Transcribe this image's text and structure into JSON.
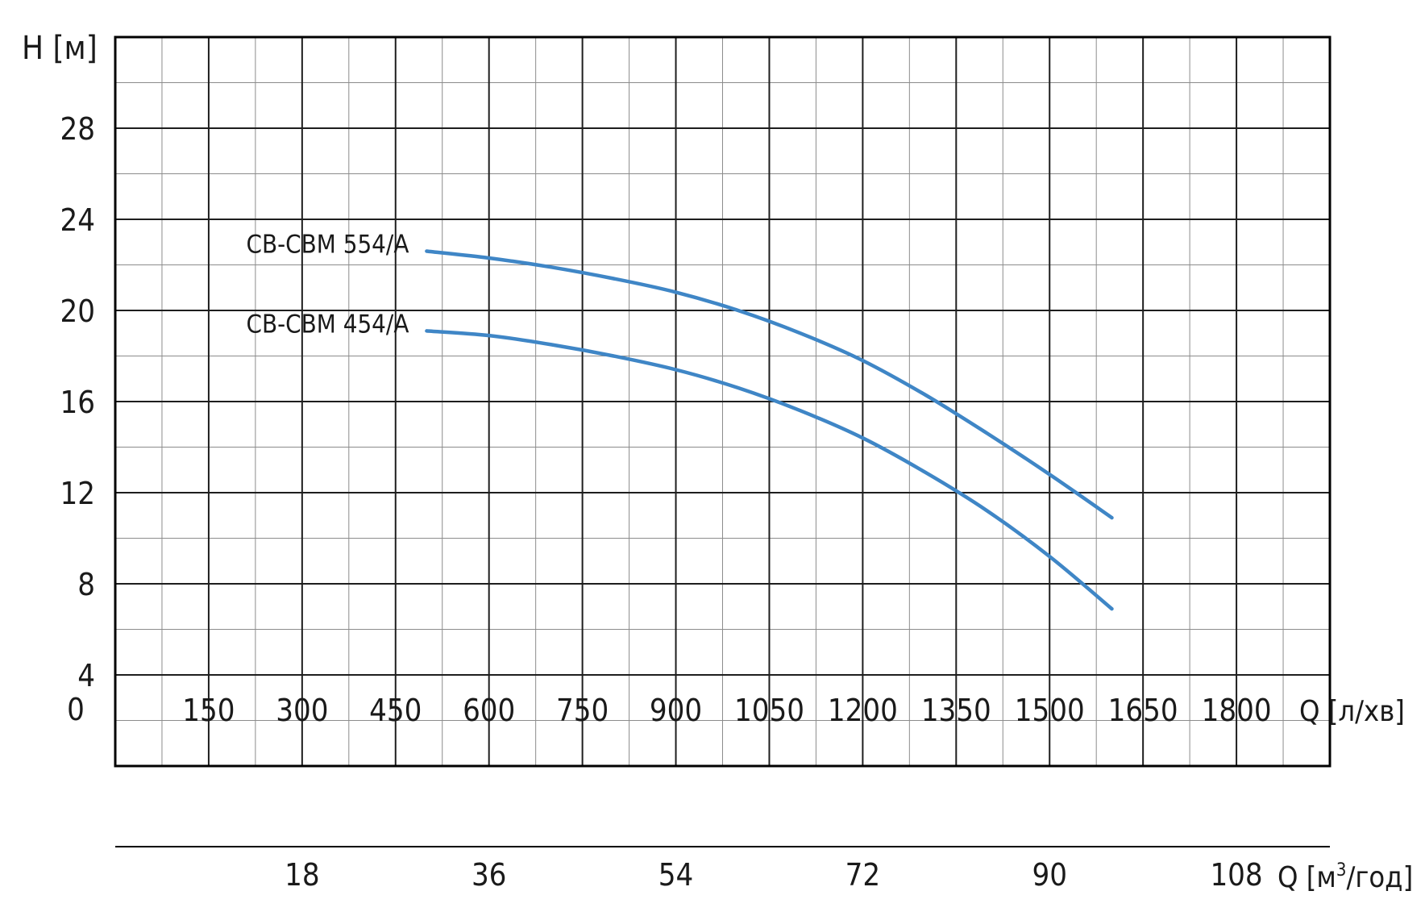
{
  "chart_data": {
    "type": "line",
    "ylabel": "H [м]",
    "xlabel": "Q [л/хв]",
    "xlabel2": "Q [м³/год]",
    "xlabel2_base": "Q [м",
    "xlabel2_sup": "3",
    "xlabel2_tail": "/год]",
    "xlim": [
      0,
      1950
    ],
    "ylim": [
      0,
      32
    ],
    "x_major_step": 150,
    "y_major_step": 4,
    "grid": true,
    "y_ticks": [
      "4",
      "8",
      "12",
      "16",
      "20",
      "24",
      "28"
    ],
    "y_tick_values": [
      4,
      8,
      12,
      16,
      20,
      24,
      28
    ],
    "origin_label": "0",
    "x_ticks": [
      "150",
      "300",
      "450",
      "600",
      "750",
      "900",
      "1050",
      "1200",
      "1350",
      "1500",
      "1650",
      "1800"
    ],
    "x_tick_values": [
      150,
      300,
      450,
      600,
      750,
      900,
      1050,
      1200,
      1350,
      1500,
      1650,
      1800
    ],
    "x2_ticks": [
      "18",
      "36",
      "54",
      "72",
      "90",
      "108"
    ],
    "x2_tick_values": [
      18,
      36,
      54,
      72,
      90,
      108
    ],
    "series": [
      {
        "name": "CB-CBM 554/A",
        "color": "#3f86c6",
        "x": [
          500,
          600,
          700,
          800,
          900,
          1000,
          1100,
          1200,
          1300,
          1400,
          1500,
          1600
        ],
        "y": [
          22.6,
          22.3,
          21.9,
          21.4,
          20.8,
          20.0,
          19.0,
          17.8,
          16.3,
          14.6,
          12.8,
          10.9
        ]
      },
      {
        "name": "CB-CBM 454/A",
        "color": "#3f86c6",
        "x": [
          500,
          600,
          700,
          800,
          900,
          1000,
          1100,
          1200,
          1300,
          1400,
          1500,
          1600
        ],
        "y": [
          19.1,
          18.9,
          18.5,
          18.0,
          17.4,
          16.6,
          15.6,
          14.4,
          12.9,
          11.2,
          9.2,
          6.9
        ]
      }
    ]
  }
}
